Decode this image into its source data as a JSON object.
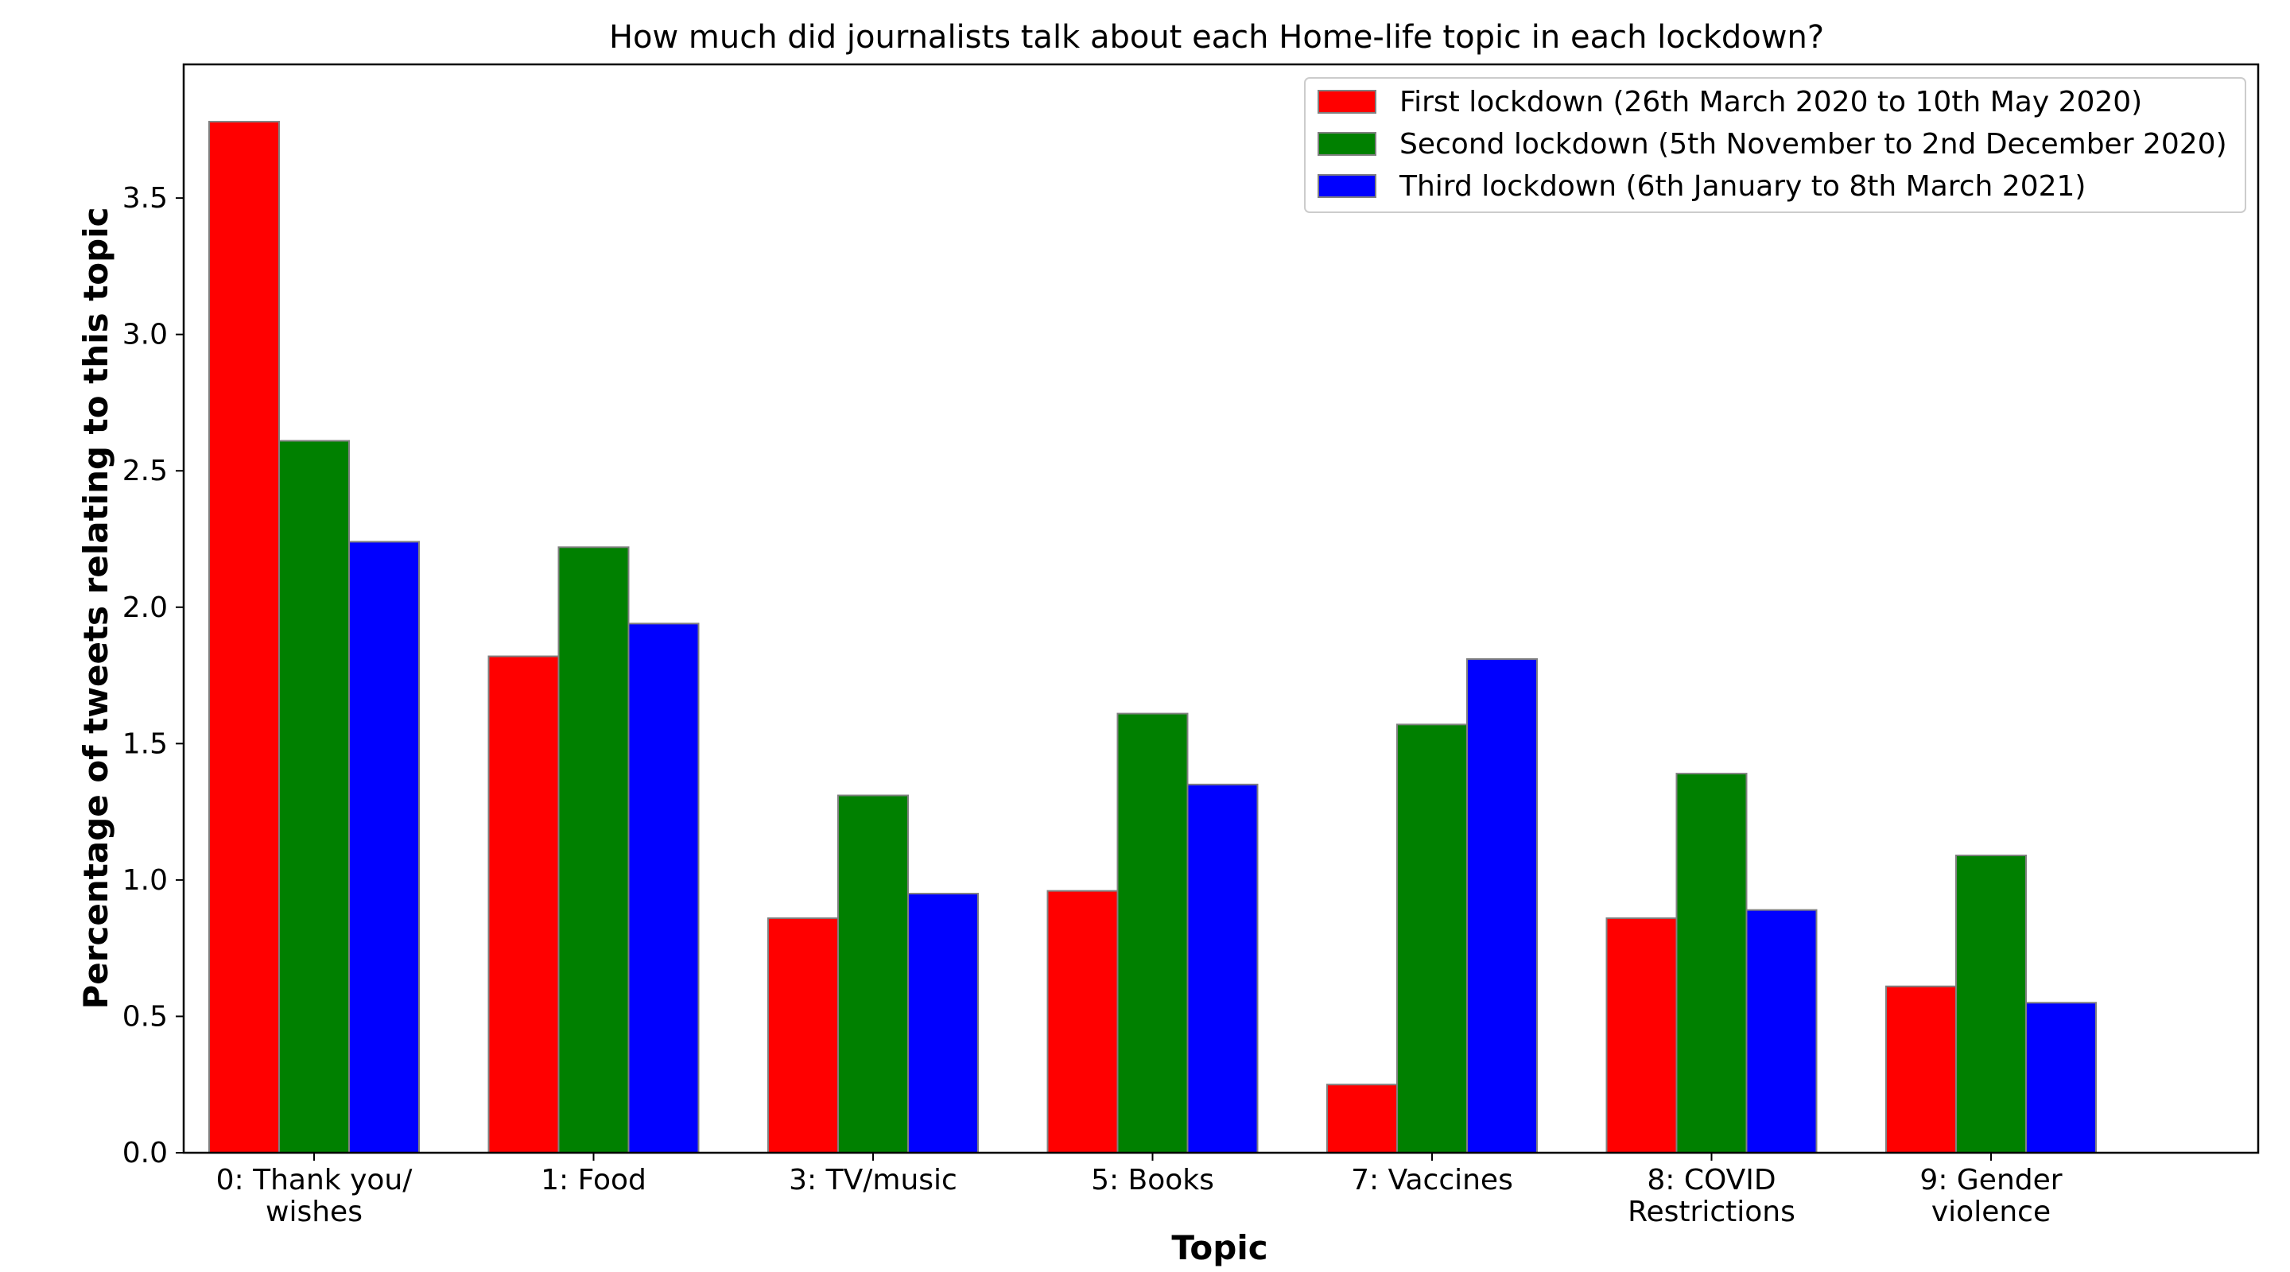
{
  "chart_data": {
    "type": "bar",
    "title": "How much did journalists talk about each Home-life topic in each lockdown?",
    "xlabel": "Topic",
    "ylabel": "Percentage of tweets relating to this topic",
    "categories": [
      [
        "0: Thank you/",
        "wishes"
      ],
      [
        "1: Food"
      ],
      [
        "3: TV/music"
      ],
      [
        "5: Books"
      ],
      [
        "7: Vaccines"
      ],
      [
        "8: COVID",
        "Restrictions"
      ],
      [
        "9: Gender",
        "violence"
      ]
    ],
    "series": [
      {
        "name": "First lockdown (26th March 2020 to 10th May 2020)",
        "color": "#ff0000",
        "values": [
          3.78,
          1.82,
          0.86,
          0.96,
          0.25,
          0.86,
          0.61
        ]
      },
      {
        "name": "Second lockdown (5th November to 2nd December 2020)",
        "color": "#008000",
        "values": [
          2.61,
          2.22,
          1.31,
          1.61,
          1.57,
          1.39,
          1.09
        ]
      },
      {
        "name": "Third lockdown (6th January to 8th March 2021)",
        "color": "#0000ff",
        "values": [
          2.24,
          1.94,
          0.95,
          1.35,
          1.81,
          0.89,
          0.55
        ]
      }
    ],
    "ylim": [
      0,
      3.99
    ],
    "yticks": [
      "0.0",
      "0.5",
      "1.0",
      "1.5",
      "2.0",
      "2.5",
      "3.0",
      "3.5"
    ],
    "grid": false,
    "legend_position": "top-right",
    "bar_edge_color": "#808080"
  }
}
